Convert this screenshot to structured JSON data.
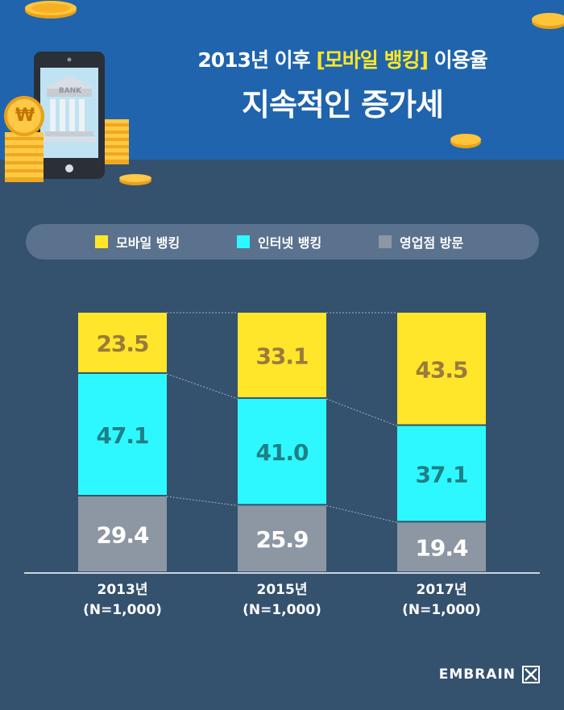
{
  "header": {
    "title_part1": "2013년 이후 ",
    "title_highlight": "[모바일 뱅킹]",
    "title_part2": " 이용율",
    "subtitle": "지속적인 증가세",
    "bank_sign": "BANK",
    "currency_symbol": "₩"
  },
  "legend": [
    {
      "label": "모바일 뱅킹",
      "color": "#ffe62a"
    },
    {
      "label": "인터넷 뱅킹",
      "color": "#2ef8ff"
    },
    {
      "label": "영업점 방문",
      "color": "#8d97a3"
    }
  ],
  "chart_data": {
    "type": "bar",
    "stacked": true,
    "categories": [
      "2013년\n(N=1,000)",
      "2015년\n(N=1,000)",
      "2017년\n(N=1,000)"
    ],
    "series": [
      {
        "name": "영업점 방문",
        "values": [
          29.4,
          25.9,
          19.4
        ],
        "color": "#8d97a3",
        "label_color": "#ffffff"
      },
      {
        "name": "인터넷 뱅킹",
        "values": [
          47.1,
          41.0,
          37.1
        ],
        "color": "#2ef8ff",
        "label_color": "#1f7f86"
      },
      {
        "name": "모바일 뱅킹",
        "values": [
          23.5,
          33.1,
          43.5
        ],
        "color": "#ffe62a",
        "label_color": "#9b7a3d"
      }
    ],
    "ylim": [
      0,
      100
    ],
    "grid": false,
    "legend_position": "top"
  },
  "brand": {
    "name": "EMBRAIN"
  }
}
